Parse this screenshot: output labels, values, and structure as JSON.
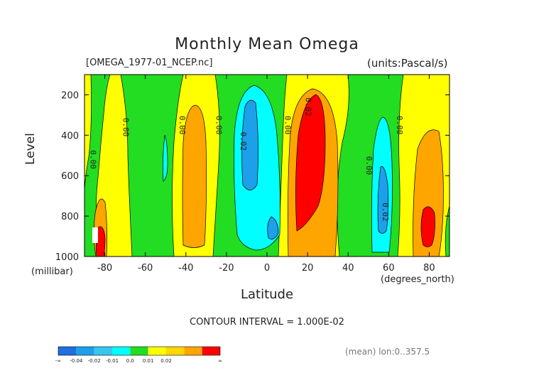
{
  "title": "Monthly Mean Omega",
  "file_label": "[OMEGA_1977-01_NCEP.nc]",
  "units_label": "(units:Pascal/s)",
  "contour_note": "CONTOUR INTERVAL = 1.000E-02",
  "mean_note": "(mean) lon:0..357.5",
  "chart_data": {
    "type": "contour",
    "title": "Monthly Mean Omega",
    "xlabel": "Latitude",
    "xunit": "(degrees_north)",
    "ylabel": "Level",
    "yunit": "(millibar)",
    "xlim": [
      -90,
      90
    ],
    "ylim": [
      1000,
      100
    ],
    "xticks": [
      -80,
      -60,
      -40,
      -20,
      0,
      20,
      40,
      60,
      80
    ],
    "yticks": [
      1000,
      800,
      600,
      400,
      200
    ],
    "contour_interval": 0.01,
    "contour_labels": [
      {
        "text": "0.00",
        "lat": -87,
        "lev": 520
      },
      {
        "text": "0.00",
        "lat": -71,
        "lev": 360
      },
      {
        "text": "0.00",
        "lat": -43,
        "lev": 350
      },
      {
        "text": "0.00",
        "lat": -25,
        "lev": 350
      },
      {
        "text": "0.02",
        "lat": -13,
        "lev": 430
      },
      {
        "text": "0.00",
        "lat": 9,
        "lev": 350
      },
      {
        "text": "0.02",
        "lat": 19,
        "lev": 260
      },
      {
        "text": "0.00",
        "lat": 49,
        "lev": 550
      },
      {
        "text": "0.02",
        "lat": 57,
        "lev": 780
      },
      {
        "text": "0.00",
        "lat": 64,
        "lev": 350
      }
    ],
    "colorbar": {
      "colors": [
        "#1f6fe0",
        "#1da0ea",
        "#35c7f0",
        "#00ffff",
        "#22dd22",
        "#ffff00",
        "#ffd700",
        "#ffa500",
        "#ff0000"
      ],
      "labels": [
        "-∞",
        "-0.04",
        "-0.02",
        "-0.01",
        "0.0",
        "0.01",
        "0.02",
        "∞"
      ]
    }
  }
}
